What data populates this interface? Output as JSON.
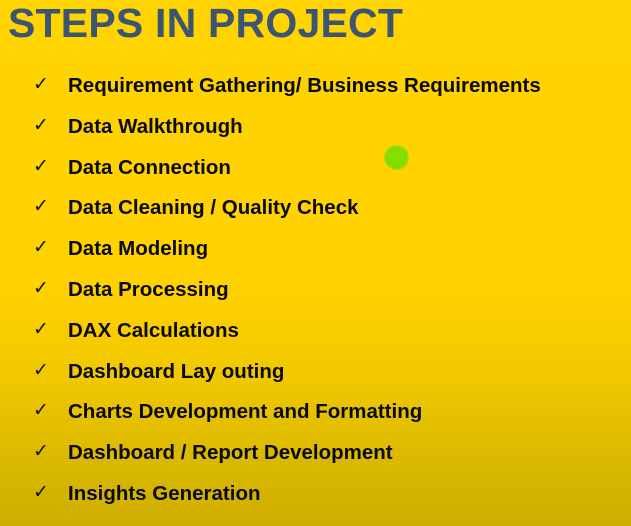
{
  "slide": {
    "title": "STEPS IN PROJECT",
    "check_glyph": "✓",
    "steps": [
      {
        "label": "Requirement Gathering/ Business Requirements"
      },
      {
        "label": "Data Walkthrough"
      },
      {
        "label": "Data Connection"
      },
      {
        "label": "Data Cleaning / Quality Check"
      },
      {
        "label": "Data Modeling"
      },
      {
        "label": "Data Processing"
      },
      {
        "label": "DAX Calculations"
      },
      {
        "label": "Dashboard Lay outing"
      },
      {
        "label": "Charts Development and Formatting"
      },
      {
        "label": "Dashboard / Report Development"
      },
      {
        "label": "Insights Generation"
      }
    ]
  },
  "colors": {
    "background": "#ffd400",
    "title": "#3b5573",
    "text": "#0a0a0a",
    "pointer": "#7fdc00"
  },
  "icons": {
    "bullet": "check-icon",
    "pointer": "laser-pointer-icon"
  }
}
